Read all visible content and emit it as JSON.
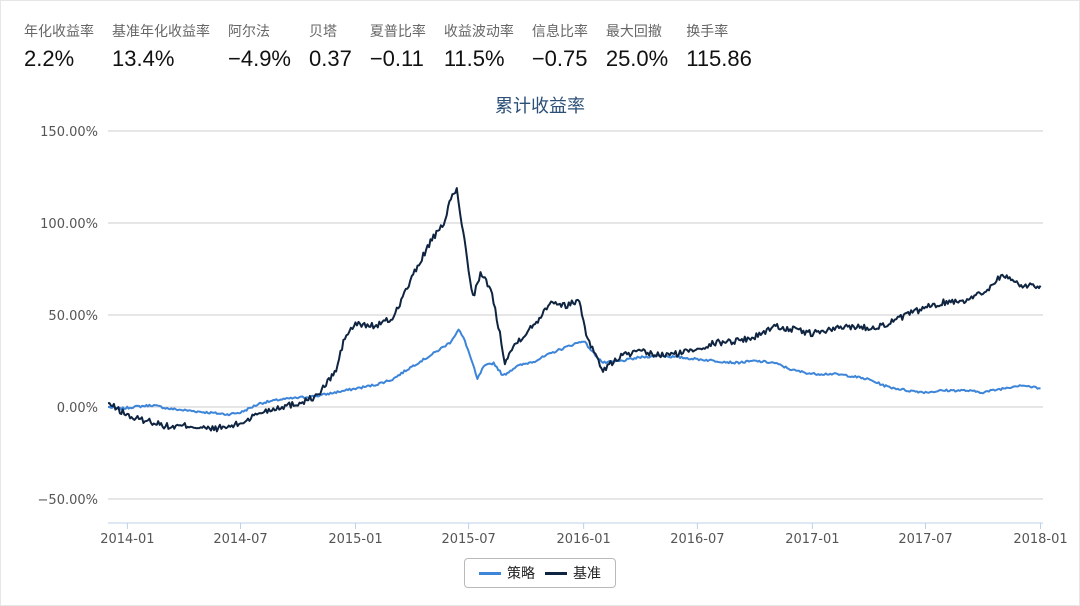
{
  "metrics": [
    {
      "label": "年化收益率",
      "value": "2.2%"
    },
    {
      "label": "基准年化收益率",
      "value": "13.4%"
    },
    {
      "label": "阿尔法",
      "value": "−4.9%"
    },
    {
      "label": "贝塔",
      "value": "0.37"
    },
    {
      "label": "夏普比率",
      "value": "−0.11"
    },
    {
      "label": "收益波动率",
      "value": "11.5%"
    },
    {
      "label": "信息比率",
      "value": "−0.75"
    },
    {
      "label": "最大回撤",
      "value": "25.0%"
    },
    {
      "label": "换手率",
      "value": "115.86"
    }
  ],
  "colors": {
    "strategy": "#3d85d8",
    "benchmark": "#0f2440",
    "title": "#2c4f78",
    "grid": "#cccccc",
    "axis_text": "#555555"
  },
  "chart_data": {
    "type": "line",
    "title": "累计收益率",
    "xlabel": "",
    "ylabel": "",
    "x_ticks": [
      "2014-01",
      "2014-07",
      "2015-01",
      "2015-07",
      "2016-01",
      "2016-07",
      "2017-01",
      "2017-07",
      "2018-01"
    ],
    "y_ticks": [
      "150.00%",
      "100.00%",
      "50.00%",
      "0.00%",
      "−50.00%"
    ],
    "ylim": [
      -60,
      150
    ],
    "xlim": [
      "2013-12-01",
      "2018-01-05"
    ],
    "grid": true,
    "legend_position": "bottom-center",
    "series": [
      {
        "name": "策略",
        "color": "#3d85d8",
        "points": [
          [
            "2013-12-01",
            0
          ],
          [
            "2013-12-20",
            -1
          ],
          [
            "2014-01-10",
            0
          ],
          [
            "2014-02-10",
            1
          ],
          [
            "2014-03-10",
            -1
          ],
          [
            "2014-04-10",
            -2
          ],
          [
            "2014-05-10",
            -3
          ],
          [
            "2014-06-10",
            -4
          ],
          [
            "2014-07-01",
            -3
          ],
          [
            "2014-08-01",
            2
          ],
          [
            "2014-09-01",
            4
          ],
          [
            "2014-10-01",
            5
          ],
          [
            "2014-11-01",
            6
          ],
          [
            "2014-12-01",
            8
          ],
          [
            "2015-01-01",
            10
          ],
          [
            "2015-02-01",
            12
          ],
          [
            "2015-03-01",
            15
          ],
          [
            "2015-04-01",
            22
          ],
          [
            "2015-05-01",
            28
          ],
          [
            "2015-06-01",
            35
          ],
          [
            "2015-06-15",
            42
          ],
          [
            "2015-06-25",
            36
          ],
          [
            "2015-07-05",
            26
          ],
          [
            "2015-07-15",
            15
          ],
          [
            "2015-07-25",
            22
          ],
          [
            "2015-08-10",
            24
          ],
          [
            "2015-08-25",
            17
          ],
          [
            "2015-09-15",
            22
          ],
          [
            "2015-10-15",
            25
          ],
          [
            "2015-11-15",
            30
          ],
          [
            "2015-12-15",
            34
          ],
          [
            "2016-01-01",
            36
          ],
          [
            "2016-01-15",
            30
          ],
          [
            "2016-02-01",
            24
          ],
          [
            "2016-03-01",
            25
          ],
          [
            "2016-04-01",
            27
          ],
          [
            "2016-05-01",
            28
          ],
          [
            "2016-06-01",
            27
          ],
          [
            "2016-07-01",
            26
          ],
          [
            "2016-08-01",
            25
          ],
          [
            "2016-09-01",
            24
          ],
          [
            "2016-10-01",
            25
          ],
          [
            "2016-11-01",
            24
          ],
          [
            "2016-12-01",
            20
          ],
          [
            "2017-01-01",
            18
          ],
          [
            "2017-02-01",
            18
          ],
          [
            "2017-03-01",
            17
          ],
          [
            "2017-04-01",
            15
          ],
          [
            "2017-05-01",
            11
          ],
          [
            "2017-06-01",
            9
          ],
          [
            "2017-07-01",
            8
          ],
          [
            "2017-08-01",
            9
          ],
          [
            "2017-09-01",
            9
          ],
          [
            "2017-10-01",
            8
          ],
          [
            "2017-11-01",
            10
          ],
          [
            "2017-12-01",
            12
          ],
          [
            "2018-01-01",
            10
          ]
        ]
      },
      {
        "name": "基准",
        "color": "#0f2440",
        "points": [
          [
            "2013-12-01",
            2
          ],
          [
            "2013-12-20",
            -2
          ],
          [
            "2014-01-10",
            -6
          ],
          [
            "2014-02-10",
            -8
          ],
          [
            "2014-03-10",
            -11
          ],
          [
            "2014-04-10",
            -10
          ],
          [
            "2014-05-10",
            -12
          ],
          [
            "2014-06-10",
            -11
          ],
          [
            "2014-07-01",
            -9
          ],
          [
            "2014-08-01",
            -3
          ],
          [
            "2014-09-01",
            0
          ],
          [
            "2014-10-01",
            2
          ],
          [
            "2014-11-01",
            6
          ],
          [
            "2014-12-01",
            20
          ],
          [
            "2014-12-15",
            38
          ],
          [
            "2015-01-01",
            45
          ],
          [
            "2015-02-01",
            44
          ],
          [
            "2015-03-01",
            48
          ],
          [
            "2015-04-01",
            70
          ],
          [
            "2015-05-01",
            90
          ],
          [
            "2015-05-20",
            98
          ],
          [
            "2015-06-05",
            115
          ],
          [
            "2015-06-12",
            118
          ],
          [
            "2015-06-20",
            100
          ],
          [
            "2015-07-01",
            75
          ],
          [
            "2015-07-08",
            60
          ],
          [
            "2015-07-20",
            72
          ],
          [
            "2015-08-05",
            65
          ],
          [
            "2015-08-20",
            40
          ],
          [
            "2015-08-28",
            25
          ],
          [
            "2015-09-15",
            35
          ],
          [
            "2015-10-15",
            45
          ],
          [
            "2015-11-10",
            58
          ],
          [
            "2015-12-01",
            55
          ],
          [
            "2015-12-25",
            58
          ],
          [
            "2016-01-05",
            40
          ],
          [
            "2016-01-20",
            28
          ],
          [
            "2016-02-01",
            20
          ],
          [
            "2016-03-01",
            28
          ],
          [
            "2016-04-01",
            30
          ],
          [
            "2016-05-01",
            28
          ],
          [
            "2016-06-01",
            29
          ],
          [
            "2016-07-01",
            32
          ],
          [
            "2016-08-01",
            35
          ],
          [
            "2016-09-01",
            36
          ],
          [
            "2016-10-01",
            38
          ],
          [
            "2016-11-01",
            44
          ],
          [
            "2016-12-01",
            42
          ],
          [
            "2017-01-01",
            40
          ],
          [
            "2017-02-01",
            42
          ],
          [
            "2017-03-01",
            44
          ],
          [
            "2017-04-01",
            43
          ],
          [
            "2017-05-01",
            45
          ],
          [
            "2017-06-01",
            50
          ],
          [
            "2017-07-01",
            54
          ],
          [
            "2017-08-01",
            57
          ],
          [
            "2017-09-01",
            58
          ],
          [
            "2017-10-01",
            62
          ],
          [
            "2017-11-01",
            72
          ],
          [
            "2017-12-01",
            66
          ],
          [
            "2018-01-01",
            66
          ]
        ]
      }
    ]
  }
}
